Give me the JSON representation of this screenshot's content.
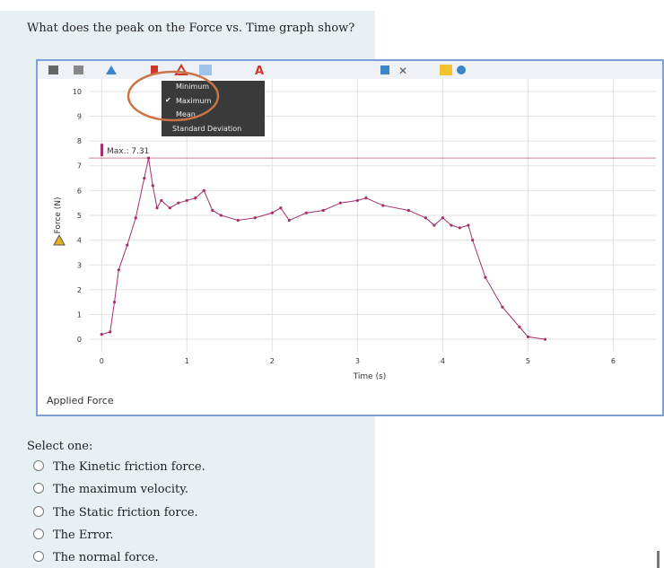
{
  "question": "What does the peak on the Force vs. Time graph show?",
  "menu": {
    "items": [
      "Minimum",
      "Maximum",
      "Mean",
      "Standard Deviation"
    ]
  },
  "chart_data": {
    "type": "line",
    "x": [
      0,
      0.1,
      0.15,
      0.2,
      0.3,
      0.4,
      0.5,
      0.55,
      0.6,
      0.65,
      0.7,
      0.8,
      0.9,
      1.0,
      1.1,
      1.2,
      1.3,
      1.4,
      1.6,
      1.8,
      2.0,
      2.1,
      2.2,
      2.4,
      2.6,
      2.8,
      3.0,
      3.1,
      3.3,
      3.6,
      3.8,
      3.9,
      4.0,
      4.1,
      4.2,
      4.3,
      4.35,
      4.5,
      4.7,
      4.9,
      5.0,
      5.2
    ],
    "series": [
      {
        "name": "Applied Force",
        "color": "#a3306c",
        "values": [
          0.2,
          0.3,
          1.5,
          2.8,
          3.8,
          4.9,
          6.5,
          7.31,
          6.2,
          5.3,
          5.6,
          5.3,
          5.5,
          5.6,
          5.7,
          6.0,
          5.2,
          5.0,
          4.8,
          4.9,
          5.1,
          5.3,
          4.8,
          5.1,
          5.2,
          5.5,
          5.6,
          5.7,
          5.4,
          5.2,
          4.9,
          4.6,
          4.9,
          4.6,
          4.5,
          4.6,
          4.0,
          2.5,
          1.3,
          0.5,
          0.1,
          0.0
        ]
      }
    ],
    "annotation": "Max.: 7.31",
    "x_label": "Time (s)",
    "y_label": "Force (N)",
    "xlim": [
      -0.15,
      6.5
    ],
    "ylim": [
      -0.5,
      10.5
    ],
    "xticks": [
      0,
      1,
      2,
      3,
      4,
      5,
      6
    ],
    "yticks": [
      0,
      1,
      2,
      3,
      4,
      5,
      6,
      7,
      8,
      9,
      10
    ],
    "grid": true
  },
  "prompt": "Select one:",
  "options": [
    "The Kinetic friction force.",
    "The maximum velocity.",
    "The Static friction force.",
    "The Error.",
    "The normal force."
  ]
}
